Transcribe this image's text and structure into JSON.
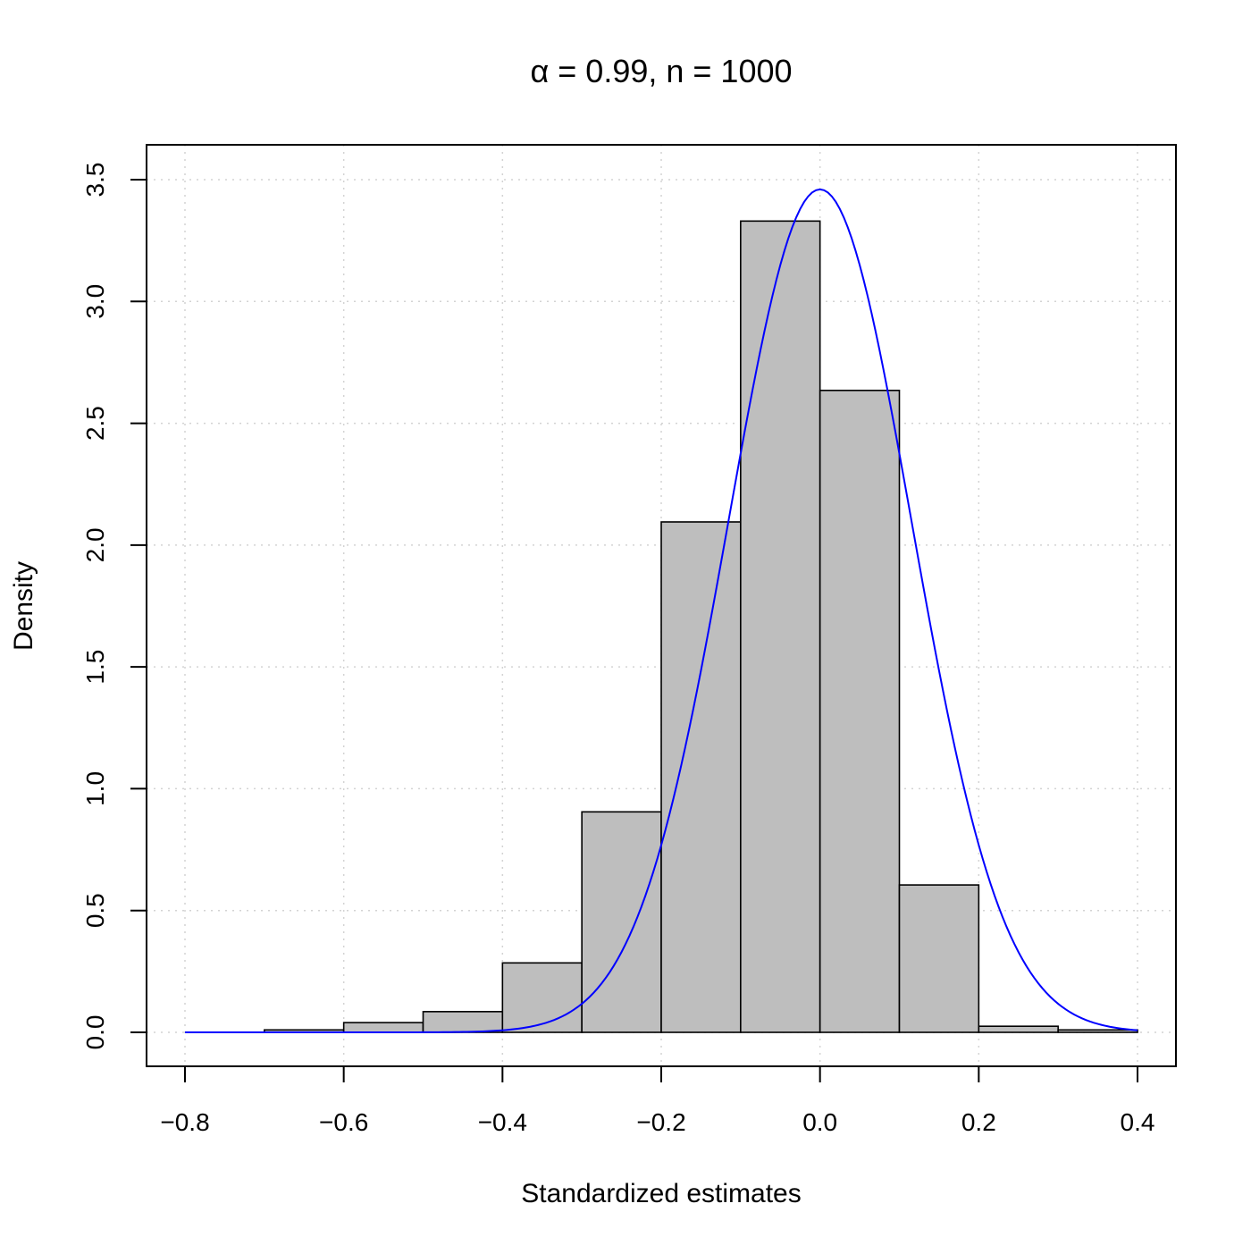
{
  "chart_data": {
    "type": "bar",
    "title": "α = 0.99, n = 1000",
    "xlabel": "Standardized estimates",
    "ylabel": "Density",
    "xlim": [
      -0.8,
      0.4
    ],
    "ylim": [
      0.0,
      3.5
    ],
    "x_ticks": [
      "−0.8",
      "−0.6",
      "−0.4",
      "−0.2",
      "0.0",
      "0.2",
      "0.4"
    ],
    "x_tick_values": [
      -0.8,
      -0.6,
      -0.4,
      -0.2,
      0.0,
      0.2,
      0.4
    ],
    "y_ticks": [
      "0.0",
      "0.5",
      "1.0",
      "1.5",
      "2.0",
      "2.5",
      "3.0",
      "3.5"
    ],
    "y_tick_values": [
      0.0,
      0.5,
      1.0,
      1.5,
      2.0,
      2.5,
      3.0,
      3.5
    ],
    "grid": true,
    "bins": [
      {
        "from": -0.8,
        "to": -0.7,
        "density": 0.0
      },
      {
        "from": -0.7,
        "to": -0.6,
        "density": 0.01
      },
      {
        "from": -0.6,
        "to": -0.5,
        "density": 0.04
      },
      {
        "from": -0.5,
        "to": -0.4,
        "density": 0.085
      },
      {
        "from": -0.4,
        "to": -0.3,
        "density": 0.285
      },
      {
        "from": -0.3,
        "to": -0.2,
        "density": 0.905
      },
      {
        "from": -0.2,
        "to": -0.1,
        "density": 2.095
      },
      {
        "from": -0.1,
        "to": 0.0,
        "density": 3.33
      },
      {
        "from": 0.0,
        "to": 0.1,
        "density": 2.635
      },
      {
        "from": 0.1,
        "to": 0.2,
        "density": 0.605
      },
      {
        "from": 0.2,
        "to": 0.3,
        "density": 0.025
      },
      {
        "from": 0.3,
        "to": 0.4,
        "density": 0.01
      }
    ],
    "curve": {
      "type": "normal-density",
      "mean": 0.0,
      "sd": 0.1153,
      "from": -0.8,
      "to": 0.4,
      "color": "#0000ff"
    },
    "bar_fill": "#bebebe",
    "bar_stroke": "#000000",
    "grid_color": "#d3d3d3"
  }
}
